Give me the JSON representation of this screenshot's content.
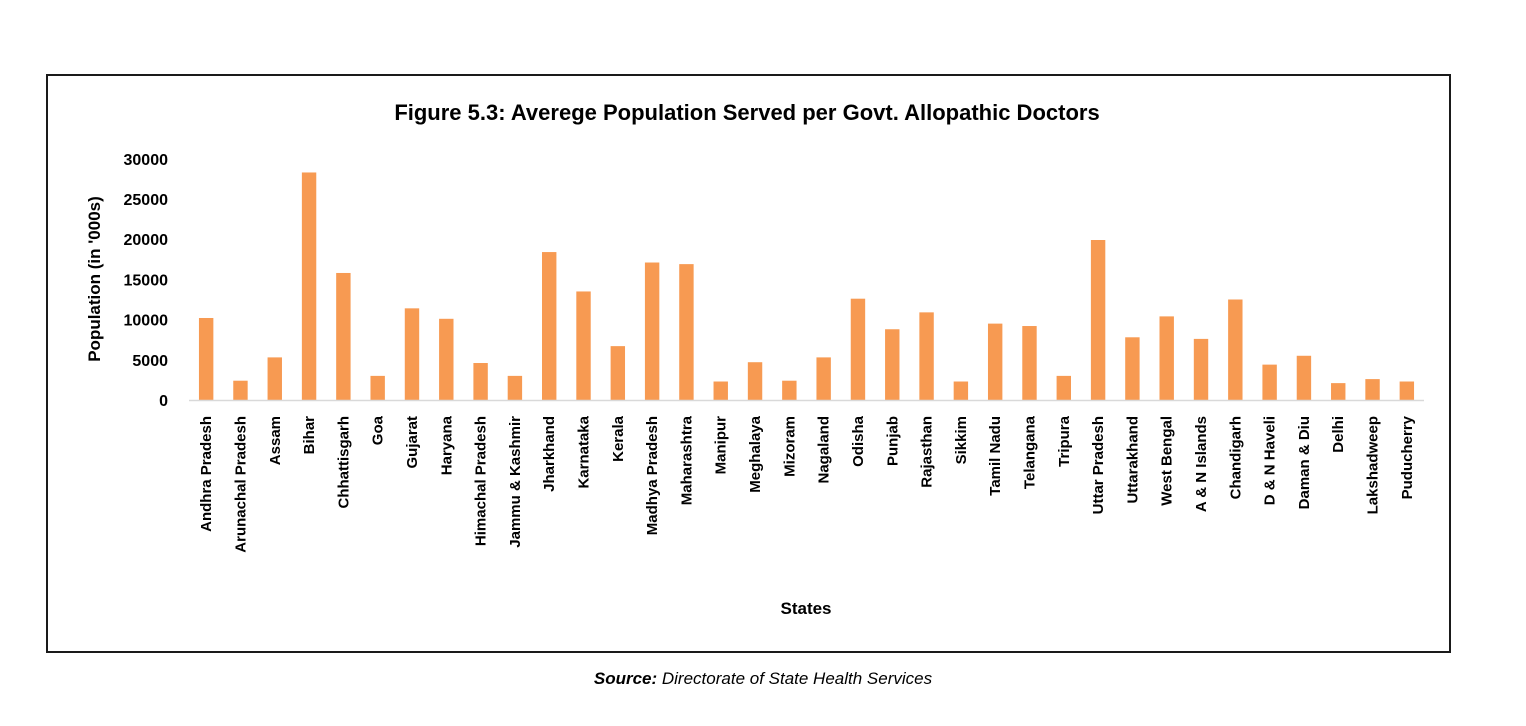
{
  "chart_data": {
    "type": "bar",
    "title": "Figure 5.3: Averege Population Served per Govt. Allopathic Doctors",
    "xlabel": "States",
    "ylabel": "Population (in '000s)",
    "ylim": [
      0,
      30000
    ],
    "yticks": [
      0,
      5000,
      10000,
      15000,
      20000,
      25000,
      30000
    ],
    "grid": false,
    "legend": "none",
    "bar_color": "#F79A52",
    "categories": [
      "Andhra Pradesh",
      "Arunachal Pradesh",
      "Assam",
      "Bihar",
      "Chhattisgarh",
      "Goa",
      "Gujarat",
      "Haryana",
      "Himachal Pradesh",
      "Jammu & Kashmir",
      "Jharkhand",
      "Karnataka",
      "Kerala",
      "Madhya Pradesh",
      "Maharashtra",
      "Manipur",
      "Meghalaya",
      "Mizoram",
      "Nagaland",
      "Odisha",
      "Punjab",
      "Rajasthan",
      "Sikkim",
      "Tamil Nadu",
      "Telangana",
      "Tripura",
      "Uttar Pradesh",
      "Uttarakhand",
      "West Bengal",
      "A & N Islands",
      "Chandigarh",
      "D & N Haveli",
      "Daman & Diu",
      "Delhi",
      "Lakshadweep",
      "Puducherry"
    ],
    "values": [
      10200,
      2400,
      5300,
      28300,
      15800,
      3000,
      11400,
      10100,
      4600,
      3000,
      18400,
      13500,
      6700,
      17100,
      16900,
      2300,
      4700,
      2400,
      5300,
      12600,
      8800,
      10900,
      2300,
      9500,
      9200,
      3000,
      19900,
      7800,
      10400,
      7600,
      12500,
      4400,
      5500,
      2100,
      2600,
      2300
    ]
  },
  "source": {
    "label": "Source:",
    "text": " Directorate of State Health Services"
  }
}
